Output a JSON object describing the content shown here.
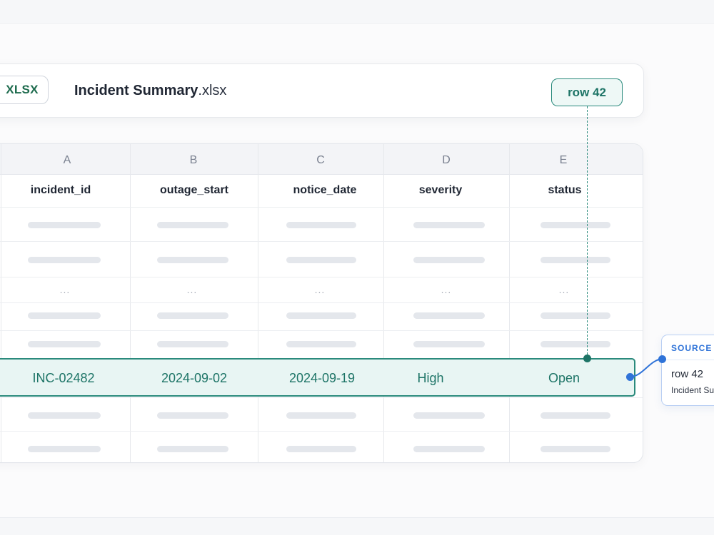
{
  "header": {
    "format_badge": "XLSX",
    "file_base": "Incident Summary",
    "file_ext": ".xlsx",
    "row_tag": "row 42"
  },
  "table": {
    "column_letters": [
      "A",
      "B",
      "C",
      "D",
      "E"
    ],
    "fields": [
      "incident_id",
      "outage_start",
      "notice_date",
      "severity",
      "status"
    ],
    "ellipsis": "...",
    "highlighted_row": {
      "incident_id": "INC-02482",
      "outage_start": "2024-09-02",
      "notice_date": "2024-09-19",
      "severity": "High",
      "status": "Open"
    }
  },
  "source_card": {
    "title": "SOURCE A",
    "row": "row 42",
    "file": "Incident Summary.xlsx"
  },
  "colors": {
    "accent_teal": "#2a8a7c",
    "accent_blue": "#2f73d8",
    "xlsx_green": "#1d6b4d"
  },
  "icons": [
    "connector-dot-icon"
  ]
}
